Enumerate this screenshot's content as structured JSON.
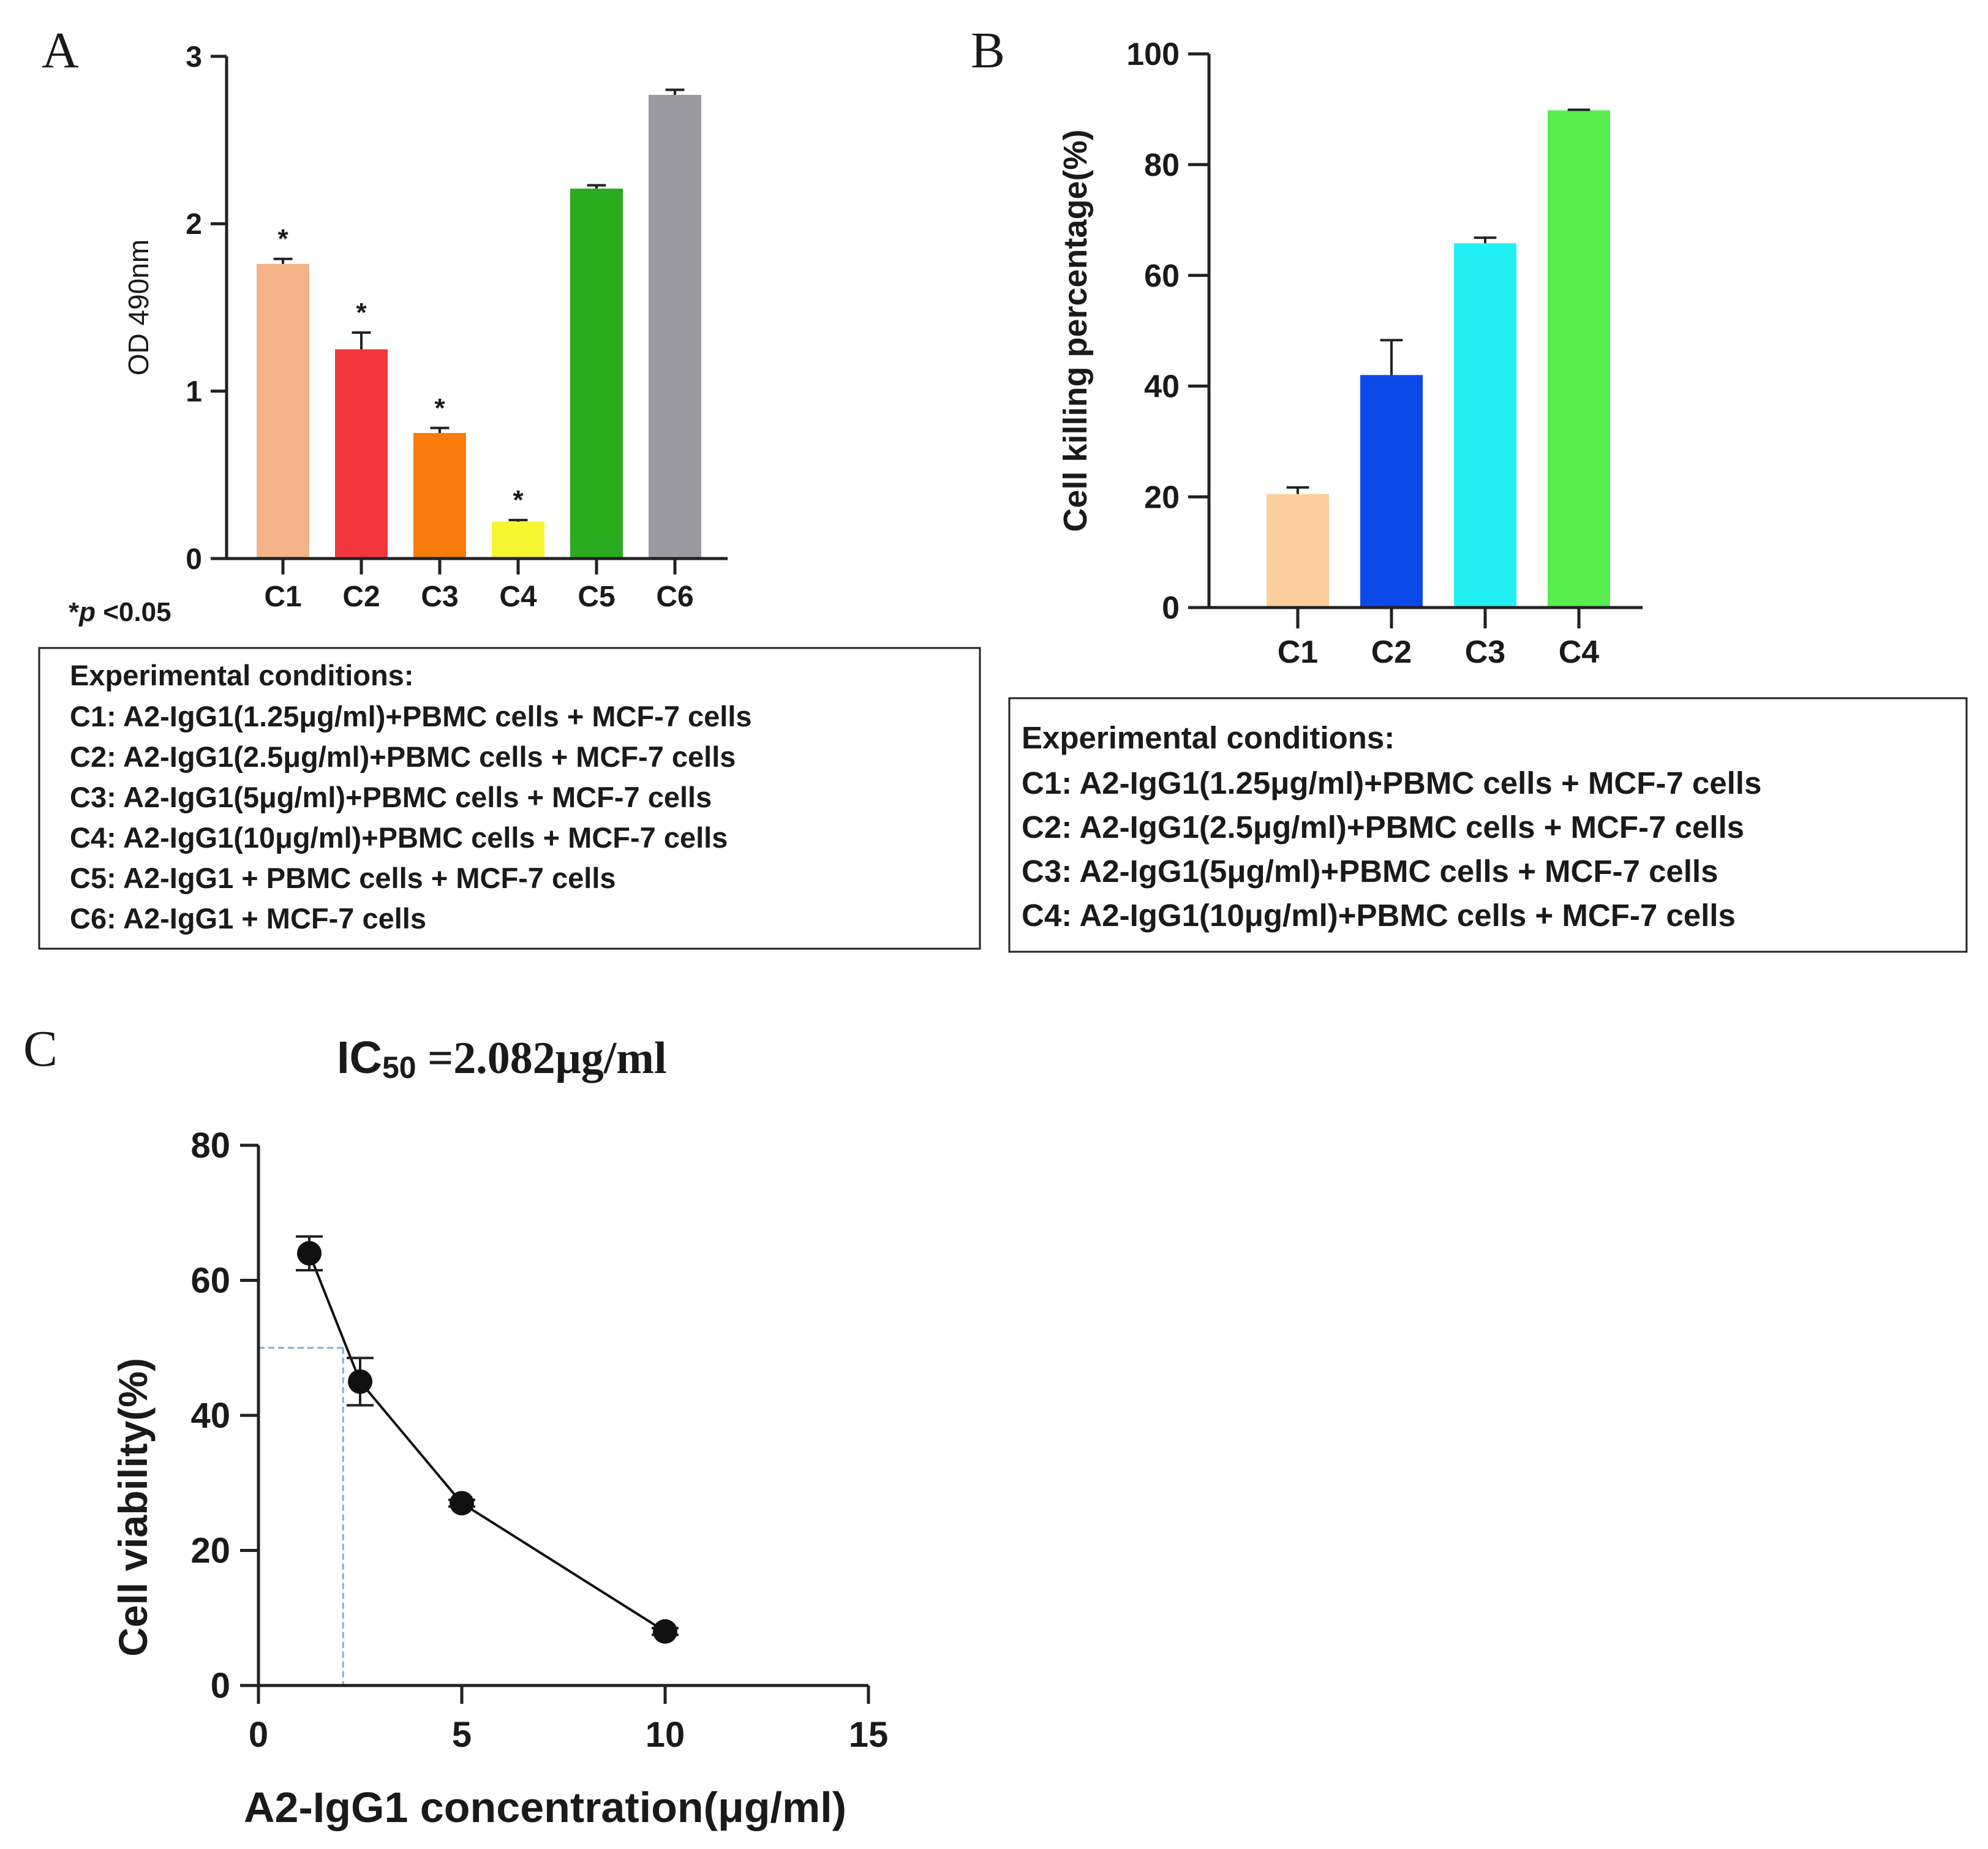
{
  "panels": {
    "A": {
      "letter": "A",
      "significance_note_star": "*",
      "significance_note_p": "p",
      "significance_note_rest": " <0.05"
    },
    "B": {
      "letter": "B"
    },
    "C": {
      "letter": "C",
      "ic50_prefix": "IC",
      "ic50_sub": "50",
      "ic50_value": " =2.082μg/ml"
    }
  },
  "legend_A": {
    "title": "Experimental conditions:",
    "lines": [
      "C1: A2-IgG1(1.25μg/ml)+PBMC cells + MCF-7 cells",
      "C2: A2-IgG1(2.5μg/ml)+PBMC cells + MCF-7 cells",
      "C3: A2-IgG1(5μg/ml)+PBMC cells + MCF-7 cells",
      "C4: A2-IgG1(10μg/ml)+PBMC cells + MCF-7 cells",
      "C5: A2-IgG1 + PBMC cells + MCF-7 cells",
      "C6: A2-IgG1 + MCF-7 cells"
    ]
  },
  "legend_B": {
    "title": "Experimental conditions:",
    "lines": [
      "C1: A2-IgG1(1.25μg/ml)+PBMC cells + MCF-7 cells",
      "C2: A2-IgG1(2.5μg/ml)+PBMC cells + MCF-7 cells",
      "C3: A2-IgG1(5μg/ml)+PBMC cells + MCF-7 cells",
      "C4: A2-IgG1(10μg/ml)+PBMC cells + MCF-7 cells"
    ]
  },
  "chart_data": [
    {
      "type": "bar",
      "panel": "A",
      "ylabel": "OD 490nm",
      "xlabel": "",
      "ylim": [
        0,
        3
      ],
      "yticks": [
        0,
        1,
        2,
        3
      ],
      "categories": [
        "C1",
        "C2",
        "C3",
        "C4",
        "C5",
        "C6"
      ],
      "values": [
        1.76,
        1.25,
        0.75,
        0.22,
        2.21,
        2.77
      ],
      "errors": [
        0.03,
        0.1,
        0.03,
        0.01,
        0.02,
        0.03
      ],
      "significance": [
        "*",
        "*",
        "*",
        "*",
        "",
        ""
      ],
      "colors": [
        "#f3b386",
        "#f2363e",
        "#f77c0c",
        "#f7f430",
        "#2aab1d",
        "#9a9aa0"
      ],
      "grid": false
    },
    {
      "type": "bar",
      "panel": "B",
      "ylabel": "Cell killing percentage(%)",
      "xlabel": "",
      "ylim": [
        0,
        100
      ],
      "yticks": [
        0,
        20,
        40,
        60,
        80,
        100
      ],
      "categories": [
        "C1",
        "C2",
        "C3",
        "C4"
      ],
      "values": [
        20.5,
        42,
        65.8,
        89.8
      ],
      "errors": [
        1.2,
        6.3,
        1.0,
        0.1
      ],
      "colors": [
        "#fccf9d",
        "#0a48e8",
        "#23f0f3",
        "#57ee4e"
      ],
      "grid": false
    },
    {
      "type": "line",
      "panel": "C",
      "ylabel": "Cell viability(%)",
      "xlabel": "A2-IgG1 concentration(μg/ml)",
      "xlim": [
        0,
        15
      ],
      "ylim": [
        0,
        80
      ],
      "xticks": [
        0,
        5,
        10,
        15
      ],
      "yticks": [
        0,
        20,
        40,
        60,
        80
      ],
      "x": [
        1.25,
        2.5,
        5,
        10
      ],
      "y": [
        64,
        45,
        27,
        8
      ],
      "errors": [
        2.5,
        3.5,
        0.5,
        0.5
      ],
      "ic50_guide": {
        "x": 2.082,
        "y": 50
      },
      "color": "#111111",
      "grid": false
    }
  ]
}
